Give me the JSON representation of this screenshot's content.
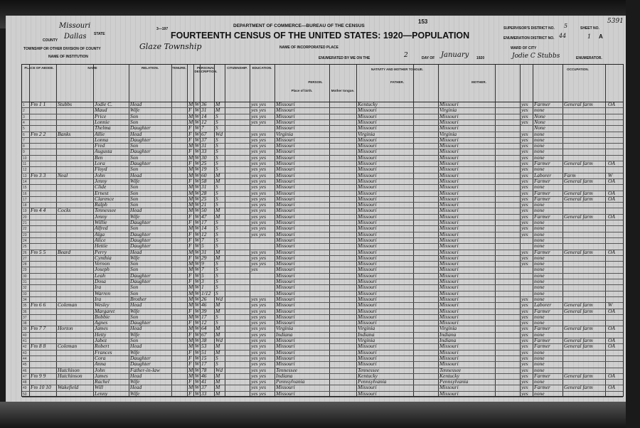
{
  "header": {
    "agency": "DEPARTMENT OF COMMERCE—BUREAU OF THE CENSUS",
    "title": "FOURTEENTH CENSUS OF THE UNITED STATES: 1920—POPULATION",
    "page_number": "153",
    "form_code": "3—197",
    "state_label": "STATE",
    "state": "Missouri",
    "county_label": "COUNTY",
    "county": "Dallas",
    "township_label": "TOWNSHIP OR OTHER DIVISION OF COUNTY",
    "township": "Glaze Township",
    "institution_label": "NAME OF INSTITUTION",
    "incorporated_label": "NAME OF INCORPORATED PLACE",
    "enumerated_label": "ENUMERATED BY ME ON THE",
    "enumerated_day": "2",
    "day_of_label": "DAY OF",
    "enumerated_month": "January",
    "enumerated_year": "1920",
    "supervisor_label": "SUPERVISOR'S DISTRICT NO.",
    "supervisor_district": "5",
    "enumeration_label": "ENUMERATION DISTRICT NO.",
    "enumeration_district": "44",
    "sheet_label": "SHEET NO.",
    "sheet": "1",
    "sheet_side": "A",
    "ward_label": "WARD OF CITY",
    "enumerator": "Jodie C Stubbs",
    "enumerator_label": "ENUMERATOR.",
    "stamp_number": "5391"
  },
  "columns": {
    "place_of_abode": "PLACE OF ABODE.",
    "name": "NAME",
    "relation": "RELATION.",
    "tenure": "TENURE.",
    "personal": "PERSONAL DESCRIPTION.",
    "citizenship": "CITIZENSHIP.",
    "education": "EDUCATION.",
    "nativity": "NATIVITY AND MOTHER TONGUE.",
    "person": "PERSON.",
    "father": "FATHER.",
    "mother": "MOTHER.",
    "place_of_birth": "Place of birth.",
    "mother_tongue": "Mother tongue.",
    "occupation": "OCCUPATION."
  },
  "rows": [
    {
      "fam": "Fm 1 1",
      "surname": "Stubbs",
      "given": "Jodie C.",
      "rel": "Head",
      "sex": "M",
      "race": "W",
      "age": "36",
      "ms": "M",
      "edu": "yes yes",
      "bp": "Missouri",
      "fbp": "Kentucky",
      "mbp": "Missouri",
      "eng": "yes",
      "occ": "Farmer",
      "ind": "General farm",
      "cls": "OA"
    },
    {
      "fam": "",
      "surname": "",
      "given": "Maud",
      "rel": "Wife",
      "sex": "F",
      "race": "W",
      "age": "31",
      "ms": "M",
      "edu": "yes yes",
      "bp": "Missouri",
      "fbp": "Missouri",
      "mbp": "Virginia",
      "eng": "yes",
      "occ": "none",
      "ind": "",
      "cls": ""
    },
    {
      "fam": "",
      "surname": "",
      "given": "Price",
      "rel": "Son",
      "sex": "M",
      "race": "W",
      "age": "14",
      "ms": "S",
      "edu": "yes yes",
      "bp": "Missouri",
      "fbp": "Missouri",
      "mbp": "Missouri",
      "eng": "yes",
      "occ": "None",
      "ind": "",
      "cls": ""
    },
    {
      "fam": "",
      "surname": "",
      "given": "Lonnie",
      "rel": "Son",
      "sex": "M",
      "race": "W",
      "age": "12",
      "ms": "S",
      "edu": "yes yes",
      "bp": "Missouri",
      "fbp": "Missouri",
      "mbp": "Missouri",
      "eng": "yes",
      "occ": "None",
      "ind": "",
      "cls": ""
    },
    {
      "fam": "",
      "surname": "",
      "given": "Thelma",
      "rel": "Daughter",
      "sex": "F",
      "race": "W",
      "age": "7",
      "ms": "S",
      "edu": "",
      "bp": "Missouri",
      "fbp": "Missouri",
      "mbp": "Missouri",
      "eng": "",
      "occ": "None",
      "ind": "",
      "cls": ""
    },
    {
      "fam": "Fm 2 2",
      "surname": "Banks",
      "given": "Allie",
      "rel": "Head",
      "sex": "F",
      "race": "W",
      "age": "67",
      "ms": "Wd",
      "edu": "yes yes",
      "bp": "Virginia",
      "fbp": "Virginia",
      "mbp": "Virginia",
      "eng": "yes",
      "occ": "none",
      "ind": "",
      "cls": ""
    },
    {
      "fam": "",
      "surname": "",
      "given": "Lonna",
      "rel": "Daughter",
      "sex": "F",
      "race": "W",
      "age": "37",
      "ms": "S",
      "edu": "yes yes",
      "bp": "Missouri",
      "fbp": "Missouri",
      "mbp": "Missouri",
      "eng": "yes",
      "occ": "none",
      "ind": "",
      "cls": ""
    },
    {
      "fam": "",
      "surname": "",
      "given": "Fred",
      "rel": "Son",
      "sex": "M",
      "race": "W",
      "age": "31",
      "ms": "S",
      "edu": "yes yes",
      "bp": "Missouri",
      "fbp": "Missouri",
      "mbp": "Missouri",
      "eng": "yes",
      "occ": "none",
      "ind": "",
      "cls": ""
    },
    {
      "fam": "",
      "surname": "",
      "given": "Augusta",
      "rel": "Daughter",
      "sex": "F",
      "race": "W",
      "age": "33",
      "ms": "S",
      "edu": "yes yes",
      "bp": "Missouri",
      "fbp": "Missouri",
      "mbp": "Missouri",
      "eng": "yes",
      "occ": "none",
      "ind": "",
      "cls": ""
    },
    {
      "fam": "",
      "surname": "",
      "given": "Ben",
      "rel": "Son",
      "sex": "M",
      "race": "W",
      "age": "30",
      "ms": "S",
      "edu": "yes yes",
      "bp": "Missouri",
      "fbp": "Missouri",
      "mbp": "Missouri",
      "eng": "yes",
      "occ": "none",
      "ind": "",
      "cls": ""
    },
    {
      "fam": "",
      "surname": "",
      "given": "Lora",
      "rel": "Daughter",
      "sex": "F",
      "race": "W",
      "age": "25",
      "ms": "S",
      "edu": "yes yes",
      "bp": "Missouri",
      "fbp": "Missouri",
      "mbp": "Missouri",
      "eng": "yes",
      "occ": "Farmer",
      "ind": "General farm",
      "cls": "OA"
    },
    {
      "fam": "",
      "surname": "",
      "given": "Floyd",
      "rel": "Son",
      "sex": "M",
      "race": "W",
      "age": "19",
      "ms": "S",
      "edu": "yes yes",
      "bp": "Missouri",
      "fbp": "Missouri",
      "mbp": "Missouri",
      "eng": "yes",
      "occ": "none",
      "ind": "",
      "cls": ""
    },
    {
      "fam": "Fm 3 3",
      "surname": "Neal",
      "given": "John",
      "rel": "Head",
      "sex": "M",
      "race": "W",
      "age": "60",
      "ms": "M",
      "edu": "yes yes",
      "bp": "Missouri",
      "fbp": "Missouri",
      "mbp": "Missouri",
      "eng": "yes",
      "occ": "Laborer",
      "ind": "Farm",
      "cls": "W"
    },
    {
      "fam": "",
      "surname": "",
      "given": "Jenny",
      "rel": "Wife",
      "sex": "F",
      "race": "W",
      "age": "58",
      "ms": "M",
      "edu": "yes yes",
      "bp": "Missouri",
      "fbp": "Missouri",
      "mbp": "Missouri",
      "eng": "yes",
      "occ": "Farmer",
      "ind": "General farm",
      "cls": "OA"
    },
    {
      "fam": "",
      "surname": "",
      "given": "Clide",
      "rel": "Son",
      "sex": "M",
      "race": "W",
      "age": "31",
      "ms": "S",
      "edu": "yes yes",
      "bp": "Missouri",
      "fbp": "Missouri",
      "mbp": "Missouri",
      "eng": "yes",
      "occ": "none",
      "ind": "",
      "cls": ""
    },
    {
      "fam": "",
      "surname": "",
      "given": "Ernest",
      "rel": "Son",
      "sex": "M",
      "race": "W",
      "age": "28",
      "ms": "S",
      "edu": "yes yes",
      "bp": "Missouri",
      "fbp": "Missouri",
      "mbp": "Missouri",
      "eng": "yes",
      "occ": "Farmer",
      "ind": "General farm",
      "cls": "OA"
    },
    {
      "fam": "",
      "surname": "",
      "given": "Clarence",
      "rel": "Son",
      "sex": "M",
      "race": "W",
      "age": "25",
      "ms": "S",
      "edu": "yes yes",
      "bp": "Missouri",
      "fbp": "Missouri",
      "mbp": "Missouri",
      "eng": "yes",
      "occ": "Farmer",
      "ind": "General farm",
      "cls": "OA"
    },
    {
      "fam": "",
      "surname": "",
      "given": "Ralph",
      "rel": "Son",
      "sex": "M",
      "race": "W",
      "age": "21",
      "ms": "S",
      "edu": "yes yes",
      "bp": "Missouri",
      "fbp": "Missouri",
      "mbp": "Missouri",
      "eng": "yes",
      "occ": "none",
      "ind": "",
      "cls": ""
    },
    {
      "fam": "Fm 4 4",
      "surname": "Cocks",
      "given": "Tennessee",
      "rel": "Head",
      "sex": "M",
      "race": "W",
      "age": "50",
      "ms": "M",
      "edu": "yes yes",
      "bp": "Missouri",
      "fbp": "Missouri",
      "mbp": "Missouri",
      "eng": "yes",
      "occ": "none",
      "ind": "",
      "cls": ""
    },
    {
      "fam": "",
      "surname": "",
      "given": "Jenny",
      "rel": "Wife",
      "sex": "F",
      "race": "W",
      "age": "47",
      "ms": "M",
      "edu": "yes yes",
      "bp": "Missouri",
      "fbp": "Missouri",
      "mbp": "Missouri",
      "eng": "yes",
      "occ": "Farmer",
      "ind": "General farm",
      "cls": "OA"
    },
    {
      "fam": "",
      "surname": "",
      "given": "Willie",
      "rel": "Daughter",
      "sex": "F",
      "race": "W",
      "age": "17",
      "ms": "S",
      "edu": "yes yes",
      "bp": "Missouri",
      "fbp": "Missouri",
      "mbp": "Missouri",
      "eng": "yes",
      "occ": "none",
      "ind": "",
      "cls": ""
    },
    {
      "fam": "",
      "surname": "",
      "given": "Alfred",
      "rel": "Son",
      "sex": "M",
      "race": "W",
      "age": "14",
      "ms": "S",
      "edu": "yes yes",
      "bp": "Missouri",
      "fbp": "Missouri",
      "mbp": "Missouri",
      "eng": "yes",
      "occ": "none",
      "ind": "",
      "cls": ""
    },
    {
      "fam": "",
      "surname": "",
      "given": "Alga",
      "rel": "Daughter",
      "sex": "F",
      "race": "W",
      "age": "12",
      "ms": "S",
      "edu": "yes yes",
      "bp": "Missouri",
      "fbp": "Missouri",
      "mbp": "Missouri",
      "eng": "yes",
      "occ": "none",
      "ind": "",
      "cls": ""
    },
    {
      "fam": "",
      "surname": "",
      "given": "Alice",
      "rel": "Daughter",
      "sex": "F",
      "race": "W",
      "age": "7",
      "ms": "S",
      "edu": "",
      "bp": "Missouri",
      "fbp": "Missouri",
      "mbp": "Missouri",
      "eng": "",
      "occ": "none",
      "ind": "",
      "cls": ""
    },
    {
      "fam": "",
      "surname": "",
      "given": "Hettie",
      "rel": "Daughter",
      "sex": "F",
      "race": "W",
      "age": "5",
      "ms": "S",
      "edu": "",
      "bp": "Missouri",
      "fbp": "Missouri",
      "mbp": "Missouri",
      "eng": "",
      "occ": "none",
      "ind": "",
      "cls": ""
    },
    {
      "fam": "Fm 5 5",
      "surname": "Beard",
      "given": "Perry",
      "rel": "Head",
      "sex": "M",
      "race": "W",
      "age": "31",
      "ms": "M",
      "edu": "yes yes",
      "bp": "Missouri",
      "fbp": "Missouri",
      "mbp": "Missouri",
      "eng": "yes",
      "occ": "Farmer",
      "ind": "General farm",
      "cls": "OA"
    },
    {
      "fam": "",
      "surname": "",
      "given": "Cynthia",
      "rel": "Wife",
      "sex": "F",
      "race": "W",
      "age": "29",
      "ms": "M",
      "edu": "yes yes",
      "bp": "Missouri",
      "fbp": "Missouri",
      "mbp": "Missouri",
      "eng": "yes",
      "occ": "none",
      "ind": "",
      "cls": ""
    },
    {
      "fam": "",
      "surname": "",
      "given": "Vernon",
      "rel": "Son",
      "sex": "M",
      "race": "W",
      "age": "9",
      "ms": "S",
      "edu": "yes yes",
      "bp": "Missouri",
      "fbp": "Missouri",
      "mbp": "Missouri",
      "eng": "yes",
      "occ": "none",
      "ind": "",
      "cls": ""
    },
    {
      "fam": "",
      "surname": "",
      "given": "Joseph",
      "rel": "Son",
      "sex": "M",
      "race": "W",
      "age": "7",
      "ms": "S",
      "edu": "yes",
      "bp": "Missouri",
      "fbp": "Missouri",
      "mbp": "Missouri",
      "eng": "",
      "occ": "none",
      "ind": "",
      "cls": ""
    },
    {
      "fam": "",
      "surname": "",
      "given": "Leah",
      "rel": "Daughter",
      "sex": "F",
      "race": "W",
      "age": "5",
      "ms": "S",
      "edu": "",
      "bp": "Missouri",
      "fbp": "Missouri",
      "mbp": "Missouri",
      "eng": "",
      "occ": "none",
      "ind": "",
      "cls": ""
    },
    {
      "fam": "",
      "surname": "",
      "given": "Dosa",
      "rel": "Daughter",
      "sex": "F",
      "race": "W",
      "age": "3",
      "ms": "S",
      "edu": "",
      "bp": "Missouri",
      "fbp": "Missouri",
      "mbp": "Missouri",
      "eng": "",
      "occ": "none",
      "ind": "",
      "cls": ""
    },
    {
      "fam": "",
      "surname": "",
      "given": "Ira",
      "rel": "Son",
      "sex": "M",
      "race": "W",
      "age": "1",
      "ms": "S",
      "edu": "",
      "bp": "Missouri",
      "fbp": "Missouri",
      "mbp": "Missouri",
      "eng": "",
      "occ": "none",
      "ind": "",
      "cls": ""
    },
    {
      "fam": "",
      "surname": "",
      "given": "Warren",
      "rel": "Son",
      "sex": "M",
      "race": "W",
      "age": "1/12",
      "ms": "S",
      "edu": "",
      "bp": "Missouri",
      "fbp": "Missouri",
      "mbp": "Missouri",
      "eng": "",
      "occ": "none",
      "ind": "",
      "cls": ""
    },
    {
      "fam": "",
      "surname": "",
      "given": "Ira",
      "rel": "Brother",
      "sex": "M",
      "race": "W",
      "age": "26",
      "ms": "Wd",
      "edu": "yes yes",
      "bp": "Missouri",
      "fbp": "Missouri",
      "mbp": "Missouri",
      "eng": "yes",
      "occ": "none",
      "ind": "",
      "cls": ""
    },
    {
      "fam": "Fm 6 6",
      "surname": "Coleman",
      "given": "Wesley",
      "rel": "Head",
      "sex": "M",
      "race": "W",
      "age": "46",
      "ms": "M",
      "edu": "yes yes",
      "bp": "Missouri",
      "fbp": "Missouri",
      "mbp": "Missouri",
      "eng": "yes",
      "occ": "Laborer",
      "ind": "General farm",
      "cls": "W"
    },
    {
      "fam": "",
      "surname": "",
      "given": "Margaret",
      "rel": "Wife",
      "sex": "F",
      "race": "W",
      "age": "39",
      "ms": "M",
      "edu": "yes yes",
      "bp": "Missouri",
      "fbp": "Missouri",
      "mbp": "Missouri",
      "eng": "yes",
      "occ": "Farmer",
      "ind": "General farm",
      "cls": "OA"
    },
    {
      "fam": "",
      "surname": "",
      "given": "Bobbie",
      "rel": "Son",
      "sex": "M",
      "race": "W",
      "age": "17",
      "ms": "S",
      "edu": "yes yes",
      "bp": "Missouri",
      "fbp": "Missouri",
      "mbp": "Missouri",
      "eng": "yes",
      "occ": "none",
      "ind": "",
      "cls": ""
    },
    {
      "fam": "",
      "surname": "",
      "given": "Agnes",
      "rel": "Daughter",
      "sex": "F",
      "race": "W",
      "age": "12",
      "ms": "S",
      "edu": "yes yes",
      "bp": "Missouri",
      "fbp": "Missouri",
      "mbp": "Missouri",
      "eng": "yes",
      "occ": "none",
      "ind": "",
      "cls": ""
    },
    {
      "fam": "Fm 7 7",
      "surname": "Horton",
      "given": "James",
      "rel": "Head",
      "sex": "M",
      "race": "W",
      "age": "64",
      "ms": "M",
      "edu": "yes yes",
      "bp": "Virginia",
      "fbp": "Virginia",
      "mbp": "Virginia",
      "eng": "yes",
      "occ": "Farmer",
      "ind": "General farm",
      "cls": "OA"
    },
    {
      "fam": "",
      "surname": "",
      "given": "Hetty",
      "rel": "Wife",
      "sex": "F",
      "race": "W",
      "age": "67",
      "ms": "M",
      "edu": "yes yes",
      "bp": "Indiana",
      "fbp": "Indiana",
      "mbp": "Indiana",
      "eng": "yes",
      "occ": "none",
      "ind": "",
      "cls": ""
    },
    {
      "fam": "",
      "surname": "",
      "given": "Jabez",
      "rel": "Son",
      "sex": "M",
      "race": "W",
      "age": "38",
      "ms": "Wd",
      "edu": "yes yes",
      "bp": "Missouri",
      "fbp": "Virginia",
      "mbp": "Indiana",
      "eng": "yes",
      "occ": "Farmer",
      "ind": "General farm",
      "cls": "OA"
    },
    {
      "fam": "Fm 8 8",
      "surname": "Coleman",
      "given": "Robert",
      "rel": "Head",
      "sex": "M",
      "race": "W",
      "age": "53",
      "ms": "M",
      "edu": "yes yes",
      "bp": "Missouri",
      "fbp": "Missouri",
      "mbp": "Missouri",
      "eng": "yes",
      "occ": "Farmer",
      "ind": "General farm",
      "cls": "OA"
    },
    {
      "fam": "",
      "surname": "",
      "given": "Frances",
      "rel": "Wife",
      "sex": "F",
      "race": "W",
      "age": "51",
      "ms": "M",
      "edu": "yes yes",
      "bp": "Missouri",
      "fbp": "Missouri",
      "mbp": "Missouri",
      "eng": "yes",
      "occ": "none",
      "ind": "",
      "cls": ""
    },
    {
      "fam": "",
      "surname": "",
      "given": "Cora",
      "rel": "Daughter",
      "sex": "F",
      "race": "W",
      "age": "15",
      "ms": "S",
      "edu": "yes yes",
      "bp": "Missouri",
      "fbp": "Missouri",
      "mbp": "Missouri",
      "eng": "yes",
      "occ": "none",
      "ind": "",
      "cls": ""
    },
    {
      "fam": "",
      "surname": "",
      "given": "Anna",
      "rel": "Daughter",
      "sex": "F",
      "race": "W",
      "age": "17",
      "ms": "S",
      "edu": "yes yes",
      "bp": "Missouri",
      "fbp": "Missouri",
      "mbp": "Missouri",
      "eng": "yes",
      "occ": "none",
      "ind": "",
      "cls": ""
    },
    {
      "fam": "",
      "surname": "Hutchison",
      "given": "John",
      "rel": "Father-in-law",
      "sex": "M",
      "race": "W",
      "age": "78",
      "ms": "Wd",
      "edu": "yes yes",
      "bp": "Tennessee",
      "fbp": "Tennessee",
      "mbp": "Tennessee",
      "eng": "yes",
      "occ": "none",
      "ind": "",
      "cls": ""
    },
    {
      "fam": "Fm 9 9",
      "surname": "Hutchinson",
      "given": "James",
      "rel": "Head",
      "sex": "M",
      "race": "W",
      "age": "46",
      "ms": "M",
      "edu": "yes yes",
      "bp": "Indiana",
      "fbp": "Kentucky",
      "mbp": "Kentucky",
      "eng": "yes",
      "occ": "Farmer",
      "ind": "General farm",
      "cls": "OA"
    },
    {
      "fam": "",
      "surname": "",
      "given": "Rachel",
      "rel": "Wife",
      "sex": "F",
      "race": "W",
      "age": "41",
      "ms": "M",
      "edu": "yes yes",
      "bp": "Pennsylvania",
      "fbp": "Pennsylvania",
      "mbp": "Pennsylvania",
      "eng": "yes",
      "occ": "none",
      "ind": "",
      "cls": ""
    },
    {
      "fam": "Fm 10 10",
      "surname": "Wakefield",
      "given": "Will",
      "rel": "Head",
      "sex": "M",
      "race": "W",
      "age": "37",
      "ms": "M",
      "edu": "yes yes",
      "bp": "Missouri",
      "fbp": "Missouri",
      "mbp": "Missouri",
      "eng": "yes",
      "occ": "Farmer",
      "ind": "General farm",
      "cls": "OA"
    },
    {
      "fam": "",
      "surname": "",
      "given": "Lenny",
      "rel": "Wife",
      "sex": "F",
      "race": "W",
      "age": "33",
      "ms": "M",
      "edu": "yes yes",
      "bp": "Missouri",
      "fbp": "Missouri",
      "mbp": "Missouri",
      "eng": "yes",
      "occ": "none",
      "ind": "",
      "cls": ""
    }
  ]
}
